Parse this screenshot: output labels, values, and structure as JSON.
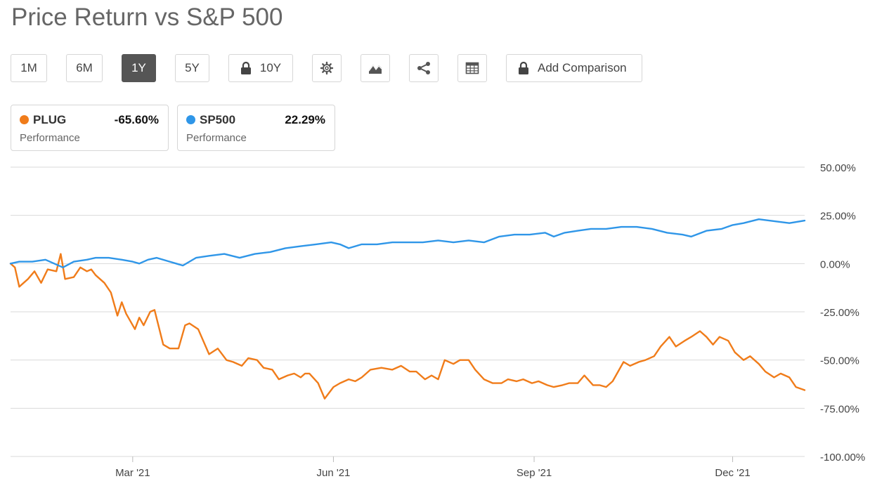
{
  "page": {
    "title": "Price Return vs S&P 500"
  },
  "toolbar": {
    "ranges": [
      {
        "label": "1M",
        "active": false,
        "locked": false
      },
      {
        "label": "6M",
        "active": false,
        "locked": false
      },
      {
        "label": "1Y",
        "active": true,
        "locked": false
      },
      {
        "label": "5Y",
        "active": false,
        "locked": false
      },
      {
        "label": "10Y",
        "active": false,
        "locked": true
      }
    ],
    "icons": [
      "gear-icon",
      "mountain-chart-icon",
      "share-icon",
      "table-icon"
    ],
    "add_comparison_label": "Add Comparison"
  },
  "legend": [
    {
      "name": "PLUG",
      "value": "-65.60%",
      "sub": "Performance",
      "color": "#f07c1a"
    },
    {
      "name": "SP500",
      "value": "22.29%",
      "sub": "Performance",
      "color": "#2f96e8"
    }
  ],
  "chart_data": {
    "type": "line",
    "title": "Price Return vs S&P 500",
    "xlabel": "",
    "ylabel": "",
    "y_unit": "%",
    "ylim": [
      -100,
      50
    ],
    "y_ticks": [
      50,
      25,
      0,
      -25,
      -50,
      -75,
      -100
    ],
    "y_tick_labels": [
      "50.00%",
      "25.00%",
      "0.00%",
      "-25.00%",
      "-50.00%",
      "-75.00%",
      "-100.00%"
    ],
    "x_range": [
      "2021-01-04",
      "2022-01-03"
    ],
    "x_ticks": [
      {
        "date": "2021-03-01",
        "label": "Mar '21"
      },
      {
        "date": "2021-06-01",
        "label": "Jun '21"
      },
      {
        "date": "2021-09-01",
        "label": "Sep '21"
      },
      {
        "date": "2021-12-01",
        "label": "Dec '21"
      }
    ],
    "grid": true,
    "legend_position": "top-left",
    "series": [
      {
        "name": "PLUG",
        "color": "#f07c1a",
        "points": [
          [
            "2021-01-04",
            0
          ],
          [
            "2021-01-06",
            -2
          ],
          [
            "2021-01-08",
            -12
          ],
          [
            "2021-01-12",
            -8
          ],
          [
            "2021-01-15",
            -4
          ],
          [
            "2021-01-18",
            -10
          ],
          [
            "2021-01-21",
            -3
          ],
          [
            "2021-01-25",
            -4
          ],
          [
            "2021-01-27",
            5
          ],
          [
            "2021-01-29",
            -8
          ],
          [
            "2021-02-02",
            -7
          ],
          [
            "2021-02-05",
            -2
          ],
          [
            "2021-02-08",
            -4
          ],
          [
            "2021-02-10",
            -3
          ],
          [
            "2021-02-12",
            -6
          ],
          [
            "2021-02-16",
            -10
          ],
          [
            "2021-02-19",
            -15
          ],
          [
            "2021-02-22",
            -27
          ],
          [
            "2021-02-24",
            -20
          ],
          [
            "2021-02-26",
            -26
          ],
          [
            "2021-03-02",
            -34
          ],
          [
            "2021-03-04",
            -28
          ],
          [
            "2021-03-06",
            -32
          ],
          [
            "2021-03-09",
            -25
          ],
          [
            "2021-03-11",
            -24
          ],
          [
            "2021-03-15",
            -42
          ],
          [
            "2021-03-18",
            -44
          ],
          [
            "2021-03-22",
            -44
          ],
          [
            "2021-03-25",
            -32
          ],
          [
            "2021-03-27",
            -31
          ],
          [
            "2021-03-31",
            -34
          ],
          [
            "2021-04-05",
            -47
          ],
          [
            "2021-04-09",
            -44
          ],
          [
            "2021-04-13",
            -50
          ],
          [
            "2021-04-16",
            -51
          ],
          [
            "2021-04-20",
            -53
          ],
          [
            "2021-04-23",
            -49
          ],
          [
            "2021-04-27",
            -50
          ],
          [
            "2021-04-30",
            -54
          ],
          [
            "2021-05-04",
            -55
          ],
          [
            "2021-05-07",
            -60
          ],
          [
            "2021-05-11",
            -58
          ],
          [
            "2021-05-14",
            -57
          ],
          [
            "2021-05-17",
            -59
          ],
          [
            "2021-05-19",
            -57
          ],
          [
            "2021-05-21",
            -57
          ],
          [
            "2021-05-25",
            -62
          ],
          [
            "2021-05-28",
            -70
          ],
          [
            "2021-06-01",
            -64
          ],
          [
            "2021-06-04",
            -62
          ],
          [
            "2021-06-08",
            -60
          ],
          [
            "2021-06-11",
            -61
          ],
          [
            "2021-06-14",
            -59
          ],
          [
            "2021-06-18",
            -55
          ],
          [
            "2021-06-23",
            -54
          ],
          [
            "2021-06-28",
            -55
          ],
          [
            "2021-07-02",
            -53
          ],
          [
            "2021-07-06",
            -56
          ],
          [
            "2021-07-09",
            -56
          ],
          [
            "2021-07-13",
            -60
          ],
          [
            "2021-07-16",
            -58
          ],
          [
            "2021-07-19",
            -60
          ],
          [
            "2021-07-22",
            -50
          ],
          [
            "2021-07-26",
            -52
          ],
          [
            "2021-07-29",
            -50
          ],
          [
            "2021-08-02",
            -50
          ],
          [
            "2021-08-05",
            -55
          ],
          [
            "2021-08-09",
            -60
          ],
          [
            "2021-08-13",
            -62
          ],
          [
            "2021-08-17",
            -62
          ],
          [
            "2021-08-20",
            -60
          ],
          [
            "2021-08-24",
            -61
          ],
          [
            "2021-08-27",
            -60
          ],
          [
            "2021-08-31",
            -62
          ],
          [
            "2021-09-03",
            -61
          ],
          [
            "2021-09-07",
            -63
          ],
          [
            "2021-09-10",
            -64
          ],
          [
            "2021-09-14",
            -63
          ],
          [
            "2021-09-17",
            -62
          ],
          [
            "2021-09-21",
            -62
          ],
          [
            "2021-09-24",
            -58
          ],
          [
            "2021-09-28",
            -63
          ],
          [
            "2021-10-01",
            -63
          ],
          [
            "2021-10-04",
            -64
          ],
          [
            "2021-10-07",
            -61
          ],
          [
            "2021-10-12",
            -51
          ],
          [
            "2021-10-15",
            -53
          ],
          [
            "2021-10-19",
            -51
          ],
          [
            "2021-10-22",
            -50
          ],
          [
            "2021-10-26",
            -48
          ],
          [
            "2021-10-29",
            -43
          ],
          [
            "2021-11-02",
            -38
          ],
          [
            "2021-11-05",
            -43
          ],
          [
            "2021-11-09",
            -40
          ],
          [
            "2021-11-12",
            -38
          ],
          [
            "2021-11-16",
            -35
          ],
          [
            "2021-11-19",
            -38
          ],
          [
            "2021-11-22",
            -42
          ],
          [
            "2021-11-25",
            -38
          ],
          [
            "2021-11-29",
            -40
          ],
          [
            "2021-12-02",
            -46
          ],
          [
            "2021-12-06",
            -50
          ],
          [
            "2021-12-09",
            -48
          ],
          [
            "2021-12-13",
            -52
          ],
          [
            "2021-12-16",
            -56
          ],
          [
            "2021-12-20",
            -59
          ],
          [
            "2021-12-23",
            -57
          ],
          [
            "2021-12-27",
            -59
          ],
          [
            "2021-12-30",
            -64
          ],
          [
            "2022-01-03",
            -65.6
          ]
        ]
      },
      {
        "name": "SP500",
        "color": "#2f96e8",
        "points": [
          [
            "2021-01-04",
            0
          ],
          [
            "2021-01-08",
            1
          ],
          [
            "2021-01-14",
            1
          ],
          [
            "2021-01-20",
            2
          ],
          [
            "2021-01-28",
            -2
          ],
          [
            "2021-02-02",
            1
          ],
          [
            "2021-02-08",
            2
          ],
          [
            "2021-02-12",
            3
          ],
          [
            "2021-02-18",
            3
          ],
          [
            "2021-02-24",
            2
          ],
          [
            "2021-03-01",
            1
          ],
          [
            "2021-03-04",
            0
          ],
          [
            "2021-03-08",
            2
          ],
          [
            "2021-03-12",
            3
          ],
          [
            "2021-03-18",
            1
          ],
          [
            "2021-03-24",
            -1
          ],
          [
            "2021-03-30",
            3
          ],
          [
            "2021-04-05",
            4
          ],
          [
            "2021-04-12",
            5
          ],
          [
            "2021-04-19",
            3
          ],
          [
            "2021-04-26",
            5
          ],
          [
            "2021-05-03",
            6
          ],
          [
            "2021-05-10",
            8
          ],
          [
            "2021-05-17",
            9
          ],
          [
            "2021-05-24",
            10
          ],
          [
            "2021-05-31",
            11
          ],
          [
            "2021-06-04",
            10
          ],
          [
            "2021-06-08",
            8
          ],
          [
            "2021-06-14",
            10
          ],
          [
            "2021-06-21",
            10
          ],
          [
            "2021-06-28",
            11
          ],
          [
            "2021-07-05",
            11
          ],
          [
            "2021-07-12",
            11
          ],
          [
            "2021-07-19",
            12
          ],
          [
            "2021-07-26",
            11
          ],
          [
            "2021-08-02",
            12
          ],
          [
            "2021-08-09",
            11
          ],
          [
            "2021-08-16",
            14
          ],
          [
            "2021-08-23",
            15
          ],
          [
            "2021-08-30",
            15
          ],
          [
            "2021-09-06",
            16
          ],
          [
            "2021-09-10",
            14
          ],
          [
            "2021-09-15",
            16
          ],
          [
            "2021-09-21",
            17
          ],
          [
            "2021-09-27",
            18
          ],
          [
            "2021-10-04",
            18
          ],
          [
            "2021-10-11",
            19
          ],
          [
            "2021-10-18",
            19
          ],
          [
            "2021-10-25",
            18
          ],
          [
            "2021-11-01",
            16
          ],
          [
            "2021-11-08",
            15
          ],
          [
            "2021-11-12",
            14
          ],
          [
            "2021-11-19",
            17
          ],
          [
            "2021-11-26",
            18
          ],
          [
            "2021-12-01",
            20
          ],
          [
            "2021-12-06",
            21
          ],
          [
            "2021-12-13",
            23
          ],
          [
            "2021-12-20",
            22
          ],
          [
            "2021-12-27",
            21
          ],
          [
            "2022-01-03",
            22.29
          ]
        ]
      }
    ]
  }
}
